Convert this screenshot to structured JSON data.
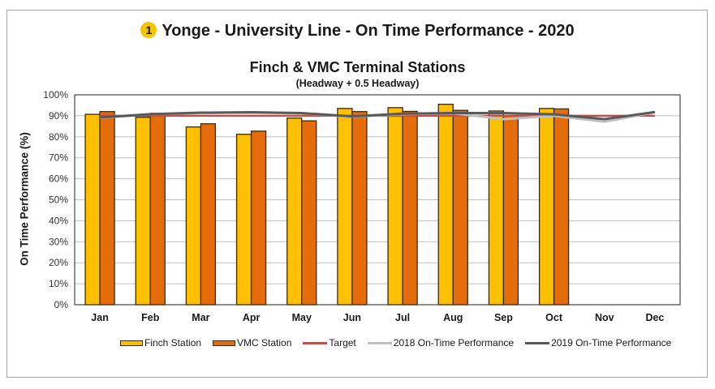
{
  "header": {
    "badge_number": "1",
    "title": "Yonge - University Line - On Time Performance - 2020",
    "subtitle": "Finch & VMC Terminal Stations",
    "subsubtitle": "(Headway + 0.5 Headway)"
  },
  "colors": {
    "finch": "#fec000",
    "vmc": "#e46c0a",
    "target": "#c0504d",
    "y2018": "#bfbfbf",
    "y2019": "#595959",
    "badge": "#f7c500",
    "grid": "#bfbfbf"
  },
  "legend": {
    "finch": "Finch Station",
    "vmc": "VMC Station",
    "target": "Target",
    "y2018": "2018 On-Time Performance",
    "y2019": "2019 On-Time Performance"
  },
  "chart_data": {
    "type": "bar",
    "title": "Yonge - University Line - On Time Performance - 2020",
    "subtitle": "Finch & VMC Terminal Stations (Headway + 0.5 Headway)",
    "xlabel": "",
    "ylabel": "On Time Performance (%)",
    "ylim": [
      0,
      100
    ],
    "yticks": [
      "0%",
      "10%",
      "20%",
      "30%",
      "40%",
      "50%",
      "60%",
      "70%",
      "80%",
      "90%",
      "100%"
    ],
    "grid": true,
    "legend_position": "bottom",
    "categories": [
      "Jan",
      "Feb",
      "Mar",
      "Apr",
      "May",
      "Jun",
      "Jul",
      "Aug",
      "Sep",
      "Oct",
      "Nov",
      "Dec"
    ],
    "series": [
      {
        "name": "Finch Station",
        "type": "bar",
        "values": [
          90.7,
          89.3,
          84.7,
          81.2,
          88.9,
          93.5,
          93.9,
          95.5,
          92.3,
          93.5,
          null,
          null
        ]
      },
      {
        "name": "VMC Station",
        "type": "bar",
        "values": [
          92.0,
          91.2,
          86.2,
          82.7,
          87.6,
          92.0,
          92.1,
          92.6,
          90.0,
          93.3,
          null,
          null
        ]
      },
      {
        "name": "Target",
        "type": "line",
        "values": [
          90,
          90,
          90,
          90,
          90,
          90,
          90,
          90,
          90,
          90,
          90,
          90
        ]
      },
      {
        "name": "2018 On-Time Performance",
        "type": "line",
        "values": [
          89.0,
          90.8,
          91.3,
          91.5,
          91.2,
          89.6,
          90.8,
          91.2,
          88.4,
          90.0,
          87.2,
          91.7
        ]
      },
      {
        "name": "2019 On-Time Performance",
        "type": "line",
        "values": [
          89.2,
          90.8,
          91.5,
          91.7,
          91.3,
          89.7,
          91.0,
          91.3,
          91.3,
          90.7,
          88.4,
          91.8
        ]
      }
    ]
  }
}
